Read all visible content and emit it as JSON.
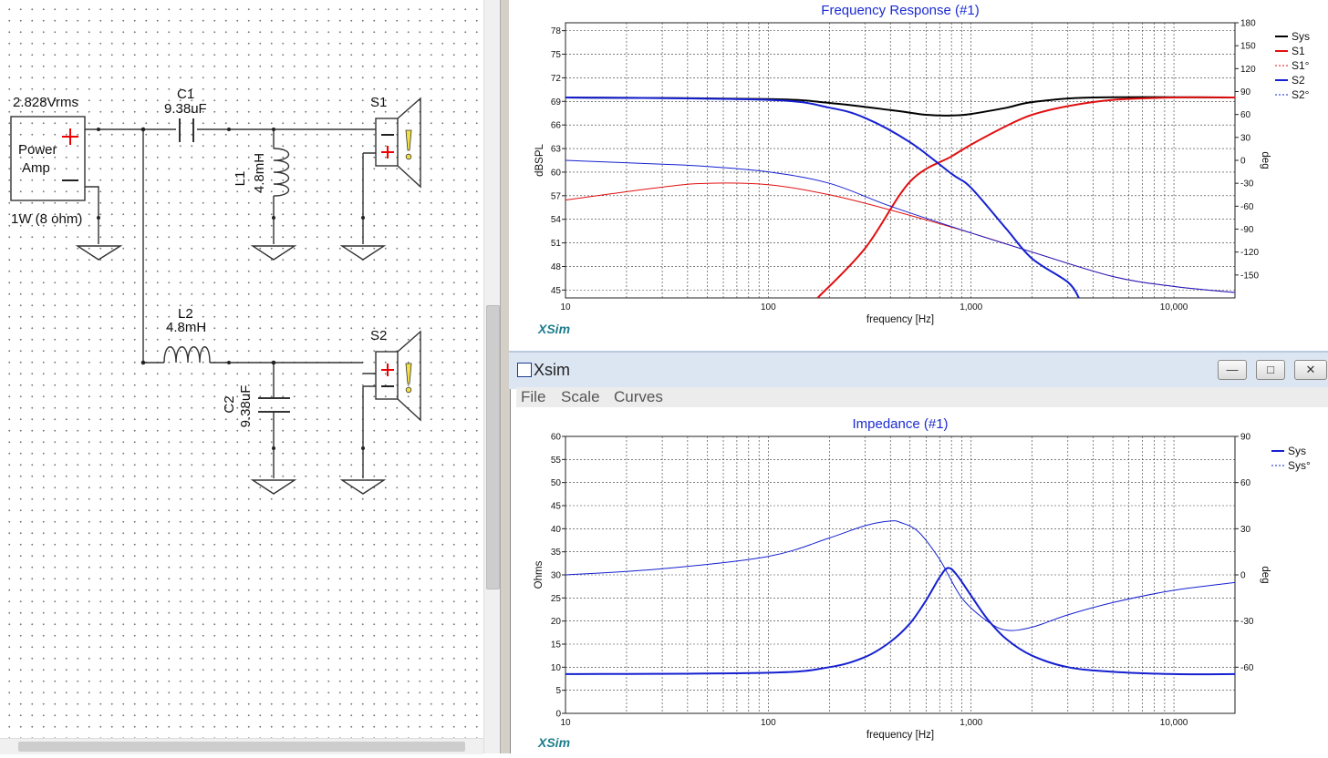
{
  "schematic": {
    "source_voltage": "2.828Vrms",
    "amp_label_line1": "Power",
    "amp_label_line2": "Amp",
    "amp_power": "1W (8 ohm)",
    "c1_name": "C1",
    "c1_value": "9.38uF",
    "l1_name": "L1",
    "l1_value": "4.8mH",
    "l2_name": "L2",
    "l2_value": "4.8mH",
    "c2_name": "C2",
    "c2_value": "9.38uF",
    "s1_name": "S1",
    "s2_name": "S2"
  },
  "window": {
    "title": "Xsim",
    "menu": [
      "File",
      "Scale",
      "Curves"
    ],
    "brand": "XSim"
  },
  "colors": {
    "title": "#1b2bd2",
    "black_curve": "#000000",
    "red_curve": "#e01010",
    "blue_curve": "#1520d0",
    "purple_curve": "#5a2a8a"
  },
  "chart_data": [
    {
      "type": "line",
      "title": "Frequency Response (#1)",
      "xlabel": "frequency [Hz]",
      "ylabel": "dBSPL",
      "y2label": "deg",
      "x_scale": "log",
      "xlim": [
        10,
        20000
      ],
      "ylim": [
        44,
        79
      ],
      "y2lim": [
        -180,
        180
      ],
      "x_ticks": [
        "10",
        "100",
        "1,000",
        "10,000"
      ],
      "y_ticks": [
        "45",
        "48",
        "51",
        "54",
        "57",
        "60",
        "63",
        "66",
        "69",
        "72",
        "75",
        "78"
      ],
      "y2_ticks": [
        "180",
        "150",
        "120",
        "90",
        "60",
        "30",
        "0",
        "-30",
        "-60",
        "-90",
        "-120",
        "-150"
      ],
      "grid": true,
      "legend": "right",
      "series": [
        {
          "name": "Sys",
          "color": "#000000",
          "axis": "left",
          "style": "solid",
          "x": [
            10,
            100,
            200,
            400,
            600,
            800,
            1000,
            1500,
            2000,
            4000,
            20000
          ],
          "y": [
            69.5,
            69.3,
            68.8,
            67.9,
            67.3,
            67.2,
            67.4,
            68.2,
            68.9,
            69.5,
            69.5
          ]
        },
        {
          "name": "S1",
          "color": "#e01010",
          "axis": "left",
          "style": "solid",
          "x": [
            175,
            300,
            500,
            800,
            1000,
            1500,
            2000,
            3000,
            5000,
            10000,
            20000
          ],
          "y": [
            44,
            50.3,
            58.8,
            62.0,
            63.5,
            65.9,
            67.3,
            68.4,
            69.2,
            69.5,
            69.5
          ]
        },
        {
          "name": "S1°",
          "color": "#e01010",
          "axis": "right",
          "style": "thin",
          "x": [
            10,
            30,
            50,
            100,
            200,
            400,
            1000,
            2000,
            5000,
            10000,
            20000
          ],
          "y": [
            -52,
            -35,
            -30,
            -32,
            -45,
            -65,
            -95,
            -120,
            -152,
            -165,
            -173
          ]
        },
        {
          "name": "S2",
          "color": "#1520d0",
          "axis": "left",
          "style": "solid",
          "x": [
            10,
            100,
            200,
            300,
            500,
            800,
            1000,
            1500,
            2000,
            3000,
            3400
          ],
          "y": [
            69.5,
            69.2,
            68.2,
            66.9,
            63.8,
            59.8,
            58.0,
            52.7,
            49.0,
            46.0,
            44
          ]
        },
        {
          "name": "S2°",
          "color": "#1520d0",
          "axis": "right",
          "style": "thin",
          "x": [
            10,
            30,
            50,
            100,
            200,
            400,
            1000,
            2000,
            5000,
            10000,
            20000
          ],
          "y": [
            0,
            -5,
            -8,
            -15,
            -30,
            -60,
            -95,
            -120,
            -152,
            -165,
            -173
          ]
        }
      ]
    },
    {
      "type": "line",
      "title": "Impedance (#1)",
      "xlabel": "frequency [Hz]",
      "ylabel": "Ohms",
      "y2label": "deg",
      "x_scale": "log",
      "xlim": [
        10,
        20000
      ],
      "ylim": [
        0,
        60
      ],
      "y2lim": [
        -90,
        90
      ],
      "x_ticks": [
        "10",
        "100",
        "1,000",
        "10,000"
      ],
      "y_ticks": [
        "0",
        "5",
        "10",
        "15",
        "20",
        "25",
        "30",
        "35",
        "40",
        "45",
        "50",
        "55",
        "60"
      ],
      "y2_ticks": [
        "90",
        "60",
        "30",
        "0",
        "-30",
        "-60"
      ],
      "grid": true,
      "legend": "right",
      "series": [
        {
          "name": "Sys",
          "color": "#1520d0",
          "axis": "left",
          "style": "solid",
          "x": [
            10,
            100,
            200,
            300,
            400,
            500,
            600,
            700,
            770,
            850,
            1000,
            1200,
            1500,
            2000,
            3000,
            5000,
            10000,
            20000
          ],
          "y": [
            8.5,
            8.8,
            10.0,
            12.2,
            15.5,
            19.5,
            24.5,
            29.5,
            31.5,
            30.0,
            25.5,
            20.5,
            16.0,
            12.5,
            10.0,
            9.0,
            8.5,
            8.5
          ]
        },
        {
          "name": "Sys°",
          "color": "#1520d0",
          "axis": "right",
          "style": "thin",
          "x": [
            10,
            30,
            100,
            200,
            300,
            400,
            450,
            550,
            700,
            900,
            1200,
            1500,
            2000,
            3000,
            5000,
            10000,
            20000
          ],
          "y": [
            0,
            4,
            12,
            24,
            32,
            35,
            34,
            28,
            10,
            -15,
            -30,
            -36,
            -34,
            -26,
            -18,
            -10,
            -5
          ]
        }
      ]
    }
  ]
}
